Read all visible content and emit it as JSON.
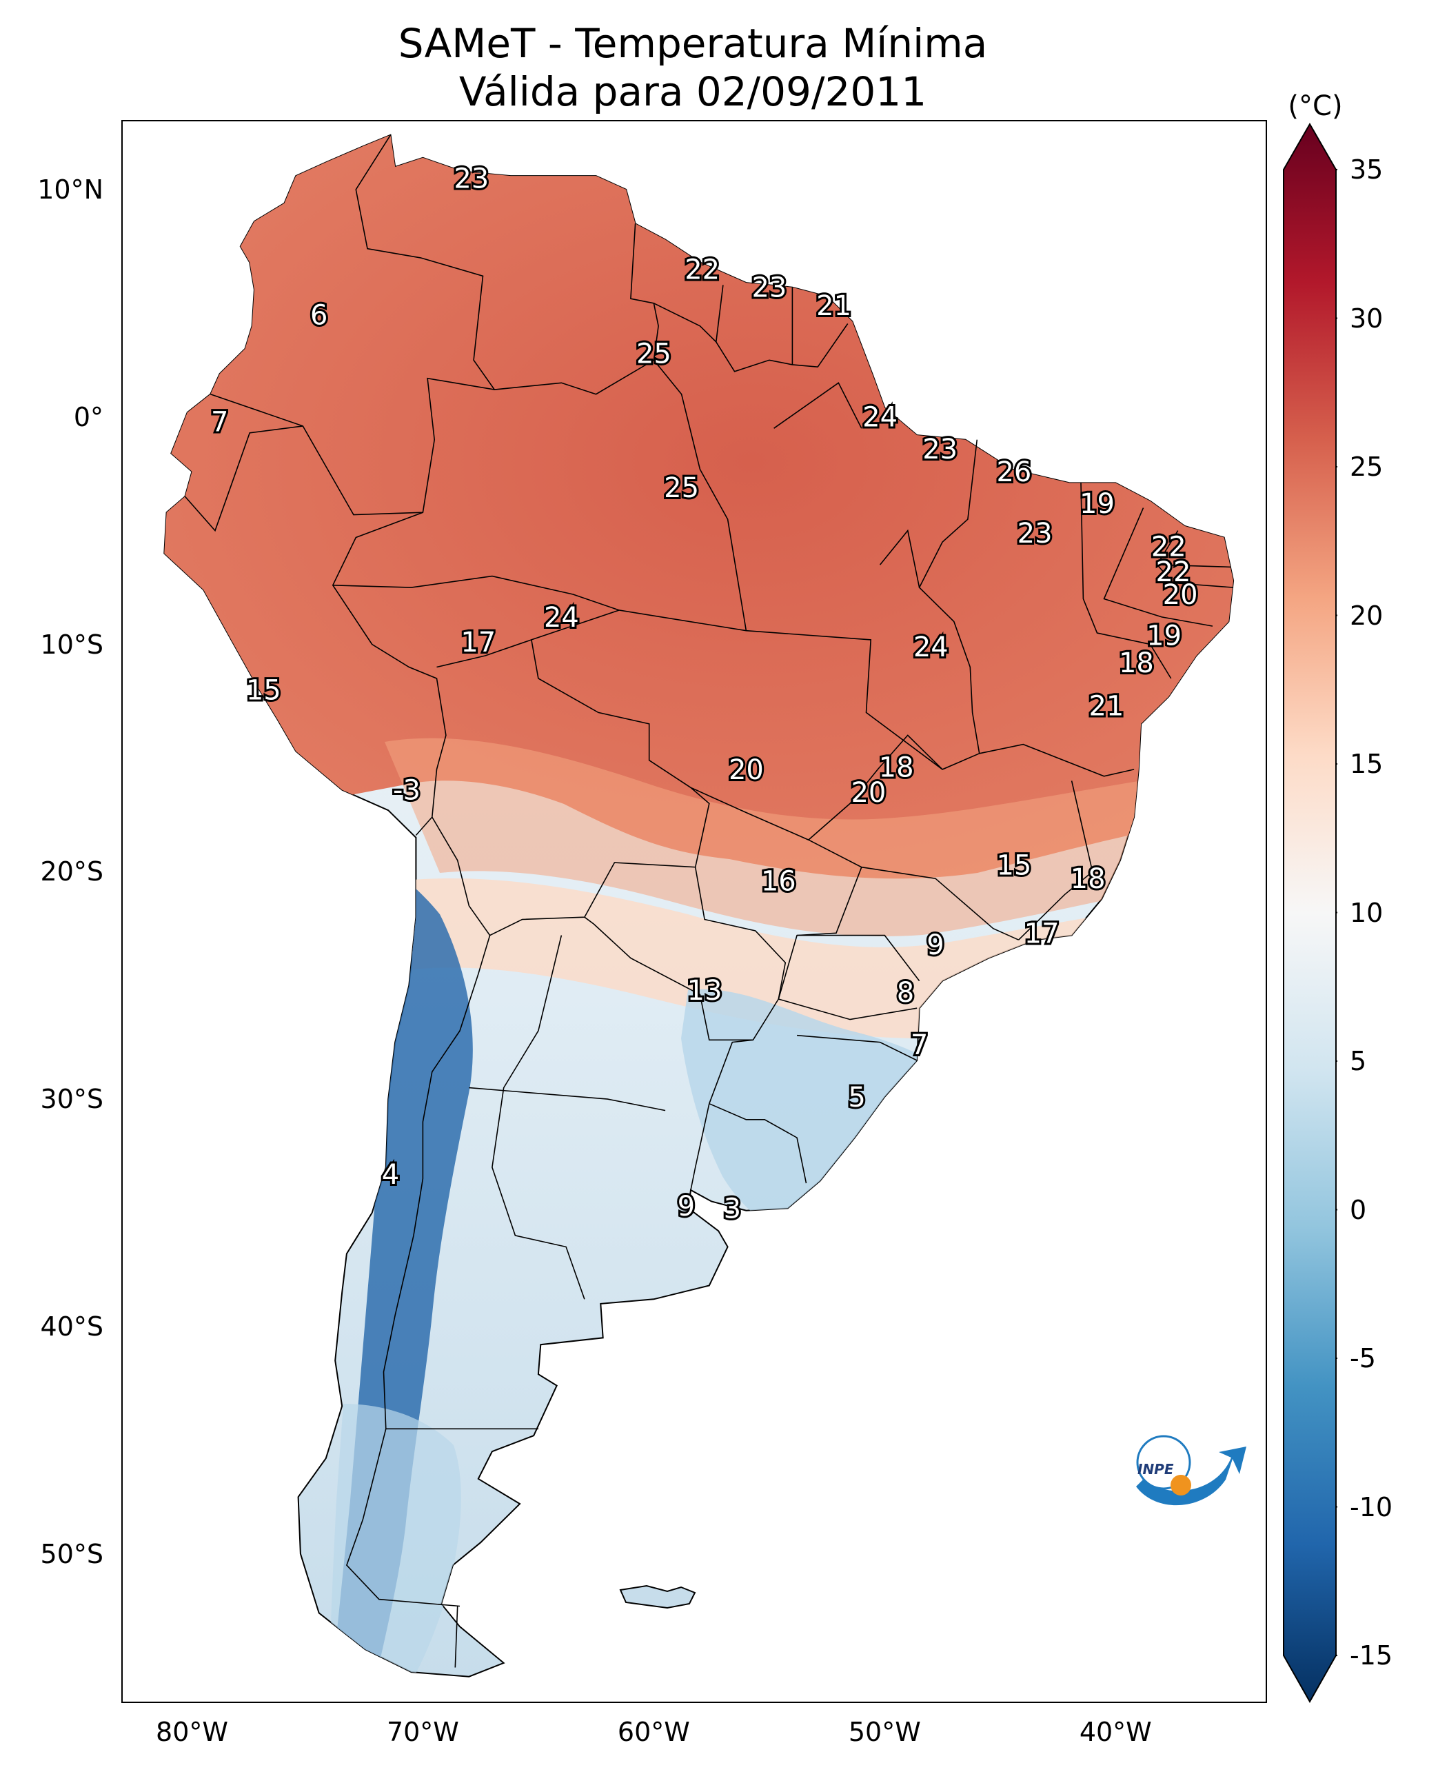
{
  "map": {
    "title_line1": "SAMeT - Temperatura Mínima",
    "title_line2": "Válida para 02/09/2011",
    "lat_ticks": [
      {
        "lat": 10,
        "label": "10°N"
      },
      {
        "lat": 0,
        "label": "0°"
      },
      {
        "lat": -10,
        "label": "10°S"
      },
      {
        "lat": -20,
        "label": "20°S"
      },
      {
        "lat": -30,
        "label": "30°S"
      },
      {
        "lat": -40,
        "label": "40°S"
      },
      {
        "lat": -50,
        "label": "50°S"
      }
    ],
    "lon_ticks": [
      {
        "lon": -80,
        "label": "80°W"
      },
      {
        "lon": -70,
        "label": "70°W"
      },
      {
        "lon": -60,
        "label": "60°W"
      },
      {
        "lon": -50,
        "label": "50°W"
      },
      {
        "lon": -40,
        "label": "40°W"
      }
    ],
    "extent": {
      "lon_min": -83,
      "lon_max": -33.5,
      "lat_min": -56.5,
      "lat_max": 13
    },
    "colorbar": {
      "unit": "(°C)",
      "min": -15,
      "max": 35,
      "ticks": [
        {
          "value": 35,
          "label": "35"
        },
        {
          "value": 30,
          "label": "30"
        },
        {
          "value": 25,
          "label": "25"
        },
        {
          "value": 20,
          "label": "20"
        },
        {
          "value": 15,
          "label": "15"
        },
        {
          "value": 10,
          "label": "10"
        },
        {
          "value": 5,
          "label": "5"
        },
        {
          "value": 0,
          "label": "0"
        },
        {
          "value": -5,
          "label": "-5"
        },
        {
          "value": -10,
          "label": "-10"
        },
        {
          "value": -15,
          "label": "-15"
        }
      ],
      "colors": [
        "#053061",
        "#2166ac",
        "#4393c3",
        "#92c5de",
        "#d1e5f0",
        "#f7f7f7",
        "#fddbc7",
        "#f4a582",
        "#d6604d",
        "#b2182b",
        "#67001f"
      ]
    },
    "station_values": [
      {
        "lon": -67.9,
        "lat": 10.5,
        "label": "23"
      },
      {
        "lon": -57.9,
        "lat": 6.5,
        "label": "22"
      },
      {
        "lon": -55.0,
        "lat": 5.7,
        "label": "23"
      },
      {
        "lon": -52.2,
        "lat": 4.9,
        "label": "21"
      },
      {
        "lon": -74.5,
        "lat": 4.5,
        "label": "6"
      },
      {
        "lon": -60.0,
        "lat": 2.8,
        "label": "25"
      },
      {
        "lon": -78.8,
        "lat": -0.2,
        "label": "7"
      },
      {
        "lon": -50.2,
        "lat": 0.0,
        "label": "24"
      },
      {
        "lon": -47.6,
        "lat": -1.4,
        "label": "23"
      },
      {
        "lon": -44.4,
        "lat": -2.4,
        "label": "26"
      },
      {
        "lon": -58.8,
        "lat": -3.1,
        "label": "25"
      },
      {
        "lon": -40.8,
        "lat": -3.8,
        "label": "19"
      },
      {
        "lon": -43.5,
        "lat": -5.1,
        "label": "23"
      },
      {
        "lon": -37.7,
        "lat": -5.7,
        "label": "22"
      },
      {
        "lon": -37.5,
        "lat": -6.8,
        "label": "22"
      },
      {
        "lon": -37.2,
        "lat": -7.8,
        "label": "20"
      },
      {
        "lon": -64.0,
        "lat": -8.8,
        "label": "24"
      },
      {
        "lon": -37.9,
        "lat": -9.6,
        "label": "19"
      },
      {
        "lon": -67.6,
        "lat": -9.9,
        "label": "17"
      },
      {
        "lon": -48.0,
        "lat": -10.1,
        "label": "24"
      },
      {
        "lon": -39.1,
        "lat": -10.8,
        "label": "18"
      },
      {
        "lon": -76.9,
        "lat": -12.0,
        "label": "15"
      },
      {
        "lon": -40.4,
        "lat": -12.7,
        "label": "21"
      },
      {
        "lon": -49.5,
        "lat": -15.4,
        "label": "18"
      },
      {
        "lon": -56.0,
        "lat": -15.5,
        "label": "20"
      },
      {
        "lon": -70.7,
        "lat": -16.4,
        "label": "-3"
      },
      {
        "lon": -50.7,
        "lat": -16.5,
        "label": "20"
      },
      {
        "lon": -44.4,
        "lat": -19.7,
        "label": "15"
      },
      {
        "lon": -41.2,
        "lat": -20.3,
        "label": "18"
      },
      {
        "lon": -54.6,
        "lat": -20.4,
        "label": "16"
      },
      {
        "lon": -43.2,
        "lat": -22.7,
        "label": "17"
      },
      {
        "lon": -47.8,
        "lat": -23.2,
        "label": "9"
      },
      {
        "lon": -49.1,
        "lat": -25.3,
        "label": "8"
      },
      {
        "lon": -57.8,
        "lat": -25.2,
        "label": "13"
      },
      {
        "lon": -48.5,
        "lat": -27.6,
        "label": "7"
      },
      {
        "lon": -51.2,
        "lat": -29.9,
        "label": "5"
      },
      {
        "lon": -71.4,
        "lat": -33.3,
        "label": "4"
      },
      {
        "lon": -58.6,
        "lat": -34.7,
        "label": "9"
      },
      {
        "lon": -56.6,
        "lat": -34.8,
        "label": "3"
      }
    ],
    "logo_text": "INPE"
  }
}
